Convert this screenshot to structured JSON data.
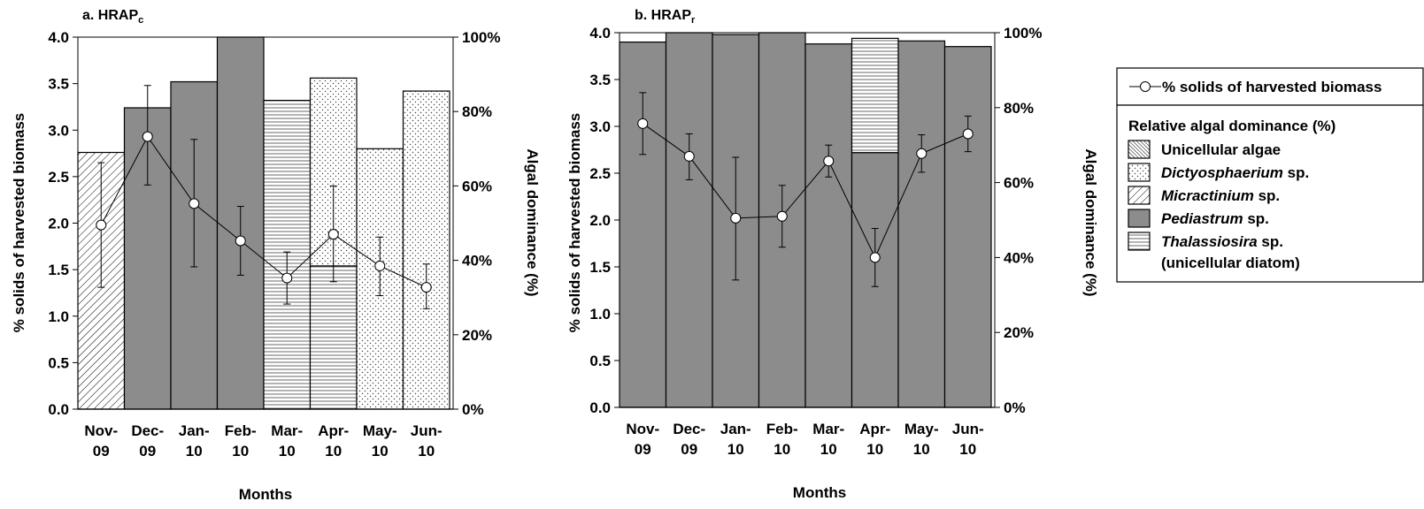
{
  "chart_data": [
    {
      "type": "bar+line",
      "title": "a. HRAP",
      "title_sub": "c",
      "categories": [
        [
          "Nov-",
          "09"
        ],
        [
          "Dec-",
          "09"
        ],
        [
          "Jan-",
          "10"
        ],
        [
          "Feb-",
          "10"
        ],
        [
          "Mar-",
          "10"
        ],
        [
          "Apr-",
          "10"
        ],
        [
          "May-",
          "10"
        ],
        [
          "Jun-",
          "10"
        ]
      ],
      "xlabel": "Months",
      "ylabel": "% solids of harvested biomass",
      "y2label": "Algal dominance (%)",
      "ylim": [
        0,
        4.0
      ],
      "yticks": [
        "0.0",
        "0.5",
        "1.0",
        "1.5",
        "2.0",
        "2.5",
        "3.0",
        "3.5",
        "4.0"
      ],
      "y2lim": [
        0,
        100
      ],
      "y2ticks": [
        "0%",
        "20%",
        "40%",
        "60%",
        "80%",
        "100%"
      ],
      "bars": [
        [
          {
            "taxon": "micractinium",
            "value": 69
          }
        ],
        [
          {
            "taxon": "pediastrum",
            "value": 81
          }
        ],
        [
          {
            "taxon": "pediastrum",
            "value": 88
          }
        ],
        [
          {
            "taxon": "pediastrum",
            "value": 100
          }
        ],
        [
          {
            "taxon": "thalassiosira",
            "value": 83
          }
        ],
        [
          {
            "taxon": "thalassiosira",
            "value": 38.5
          },
          {
            "taxon": "dictyosphaerium",
            "value": 50.5
          }
        ],
        [
          {
            "taxon": "dictyosphaerium",
            "value": 70
          }
        ],
        [
          {
            "taxon": "dictyosphaerium",
            "value": 85.5
          }
        ]
      ],
      "line": {
        "name": "% solids of harvested biomass",
        "values": [
          1.98,
          2.93,
          2.21,
          1.81,
          1.41,
          1.88,
          1.54,
          1.31
        ],
        "err_low": [
          1.31,
          2.41,
          1.53,
          1.44,
          1.13,
          1.37,
          1.22,
          1.08
        ],
        "err_high": [
          2.65,
          3.48,
          2.9,
          2.18,
          1.69,
          2.4,
          1.85,
          1.56
        ]
      }
    },
    {
      "type": "bar+line",
      "title": "b. HRAP",
      "title_sub": "r",
      "categories": [
        [
          "Nov-",
          "09"
        ],
        [
          "Dec-",
          "09"
        ],
        [
          "Jan-",
          "10"
        ],
        [
          "Feb-",
          "10"
        ],
        [
          "Mar-",
          "10"
        ],
        [
          "Apr-",
          "10"
        ],
        [
          "May-",
          "10"
        ],
        [
          "Jun-",
          "10"
        ]
      ],
      "xlabel": "Months",
      "ylabel": "% solids of harvested biomass",
      "y2label": "Algal dominance (%)",
      "ylim": [
        0,
        4.0
      ],
      "yticks": [
        "0.0",
        "0.5",
        "1.0",
        "1.5",
        "2.0",
        "2.5",
        "3.0",
        "3.5",
        "4.0"
      ],
      "y2lim": [
        0,
        100
      ],
      "y2ticks": [
        "0%",
        "20%",
        "40%",
        "60%",
        "80%",
        "100%"
      ],
      "bars": [
        [
          {
            "taxon": "pediastrum",
            "value": 97.5
          }
        ],
        [
          {
            "taxon": "pediastrum",
            "value": 100
          }
        ],
        [
          {
            "taxon": "pediastrum",
            "value": 99.5
          }
        ],
        [
          {
            "taxon": "pediastrum",
            "value": 100
          }
        ],
        [
          {
            "taxon": "pediastrum",
            "value": 97
          }
        ],
        [
          {
            "taxon": "pediastrum",
            "value": 68
          },
          {
            "taxon": "thalassiosira",
            "value": 30.5
          }
        ],
        [
          {
            "taxon": "pediastrum",
            "value": 97.8
          }
        ],
        [
          {
            "taxon": "pediastrum",
            "value": 96.3
          }
        ]
      ],
      "line": {
        "name": "% solids of harvested biomass",
        "values": [
          3.03,
          2.68,
          2.02,
          2.04,
          2.63,
          1.6,
          2.71,
          2.92
        ],
        "err_low": [
          2.7,
          2.43,
          1.36,
          1.71,
          2.46,
          1.29,
          2.51,
          2.73
        ],
        "err_high": [
          3.36,
          2.92,
          2.67,
          2.37,
          2.8,
          1.91,
          2.91,
          3.11
        ]
      }
    }
  ],
  "legend": {
    "line_label": "% solids of harvested biomass",
    "heading": "Relative algal dominance (%)",
    "items": [
      {
        "taxon": "unicellular",
        "label": "Unicellular  algae",
        "italic": "",
        "suffix": "",
        "fill": "#ffffff",
        "pattern": "diag-dense"
      },
      {
        "taxon": "dictyosphaerium",
        "label": "",
        "italic": "Dictyosphaerium",
        "suffix": " sp.",
        "fill": "#ffffff",
        "pattern": "dots"
      },
      {
        "taxon": "micractinium",
        "label": "",
        "italic": "Micractinium",
        "suffix": " sp.",
        "fill": "#ffffff",
        "pattern": "diag"
      },
      {
        "taxon": "pediastrum",
        "label": "",
        "italic": "Pediastrum",
        "suffix": " sp.",
        "fill": "#8c8c8c",
        "pattern": "solid"
      },
      {
        "taxon": "thalassiosira",
        "label": "",
        "italic": "Thalassiosira",
        "suffix": " sp.",
        "fill": "#ffffff",
        "pattern": "hlines",
        "note": "(unicellular diatom)"
      }
    ]
  },
  "colors": {
    "pediastrum": "#8c8c8c",
    "axis": "#000000",
    "line": "#000000"
  }
}
